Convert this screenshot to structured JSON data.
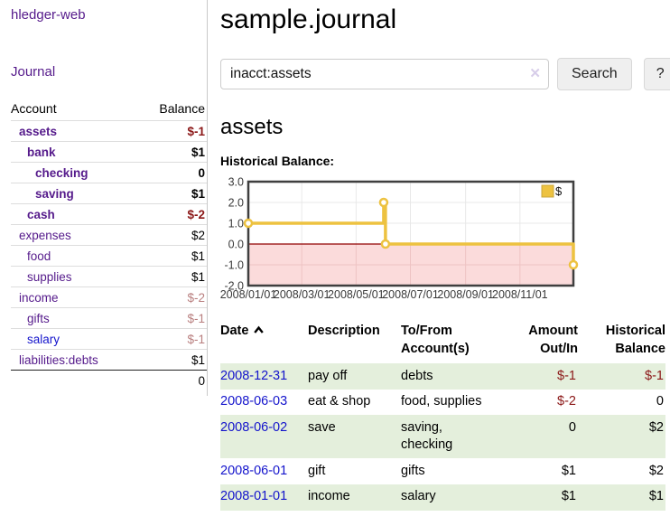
{
  "sidebar": {
    "app_title": "hledger-web",
    "nav": {
      "journal_label": "Journal"
    },
    "accounts_table": {
      "headers": {
        "account": "Account",
        "balance": "Balance"
      },
      "rows": [
        {
          "name": "assets",
          "balance": "$-1",
          "level": 1,
          "bold": true
        },
        {
          "name": "bank",
          "balance": "$1",
          "level": 2,
          "bold": true
        },
        {
          "name": "checking",
          "balance": "0",
          "level": 3,
          "bold": true
        },
        {
          "name": "saving",
          "balance": "$1",
          "level": 3,
          "bold": true
        },
        {
          "name": "cash",
          "balance": "$-2",
          "level": 2,
          "bold": true
        },
        {
          "name": "expenses",
          "balance": "$2",
          "level": 1,
          "bold": false
        },
        {
          "name": "food",
          "balance": "$1",
          "level": 2,
          "bold": false
        },
        {
          "name": "supplies",
          "balance": "$1",
          "level": 2,
          "bold": false
        },
        {
          "name": "income",
          "balance": "$-2",
          "level": 1,
          "bold": false
        },
        {
          "name": "gifts",
          "balance": "$-1",
          "level": 2,
          "bold": false
        },
        {
          "name": "salary",
          "balance": "$-1",
          "level": 2,
          "bold": false,
          "link": "blue"
        },
        {
          "name": "liabilities:debts",
          "balance": "$1",
          "level": 1,
          "bold": false
        }
      ],
      "total": "0"
    }
  },
  "header": {
    "title": "sample.journal"
  },
  "search": {
    "value": "inacct:assets",
    "clear_icon": "✕",
    "search_button": "Search",
    "help_button": "?"
  },
  "account_page": {
    "heading": "assets",
    "chart_label": "Historical Balance:"
  },
  "chart_data": {
    "type": "line",
    "step": true,
    "title": "Historical Balance",
    "series": [
      {
        "name": "$",
        "color": "#edc240",
        "points": [
          [
            "2008-01-01",
            1
          ],
          [
            "2008-06-01",
            2
          ],
          [
            "2008-06-03",
            0
          ],
          [
            "2008-12-31",
            -1
          ]
        ]
      }
    ],
    "x_range": [
      "2008-01-01",
      "2008-12-31"
    ],
    "ylim": [
      -2,
      3
    ],
    "yticks": [
      3.0,
      2.0,
      1.0,
      0.0,
      -1.0,
      -2.0
    ],
    "xticks": [
      "2008/01/01",
      "2008/03/01",
      "2008/05/01",
      "2008/07/01",
      "2008/09/01",
      "2008/11/01"
    ],
    "grid": true,
    "legend_position": "top-right",
    "negative_region_fill": "#fbdbdb",
    "zero_line_color": "#900000",
    "border_color": "#3f3f3f",
    "grid_color": "#e8e8e8",
    "grid_color_negative": "#eec3c3"
  },
  "register": {
    "headers": {
      "date": "Date",
      "description": "Description",
      "accounts": "To/From\nAccount(s)",
      "amount": "Amount\nOut/In",
      "balance": "Historical\nBalance"
    },
    "rows": [
      {
        "date": "2008-12-31",
        "description": "pay off",
        "accounts": "debts",
        "amount": "$-1",
        "balance": "$-1"
      },
      {
        "date": "2008-06-03",
        "description": "eat & shop",
        "accounts": "food, supplies",
        "amount": "$-2",
        "balance": "0"
      },
      {
        "date": "2008-06-02",
        "description": "save",
        "accounts": "saving, checking",
        "amount": "0",
        "balance": "$2"
      },
      {
        "date": "2008-06-01",
        "description": "gift",
        "accounts": "gifts",
        "amount": "$1",
        "balance": "$2"
      },
      {
        "date": "2008-01-01",
        "description": "income",
        "accounts": "salary",
        "amount": "$1",
        "balance": "$1"
      }
    ]
  },
  "colors": {
    "link_purple": "#551a8b",
    "link_blue": "#1414cc",
    "negative_strong": "#8b1717",
    "negative_faded": "#b87e7e",
    "row_green": "#e4efdc",
    "series_gold": "#edc240"
  }
}
